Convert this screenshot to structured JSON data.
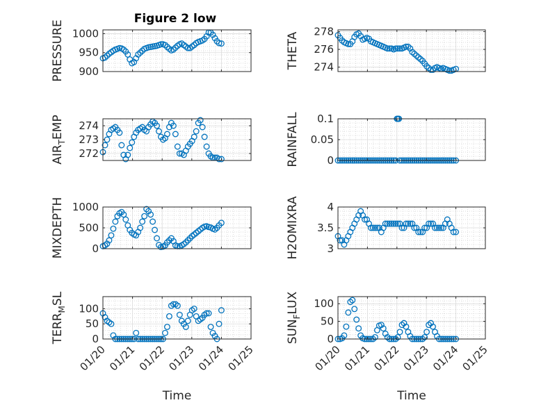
{
  "figure": {
    "title": "Figure 2 low",
    "marker_color": "#0072BD"
  },
  "chart_data": [
    {
      "type": "scatter",
      "ylabel": "PRESSURE",
      "ylabel_sub": "",
      "ylim": [
        900,
        1010
      ],
      "yticks": [
        900,
        950,
        1000
      ],
      "ytick_labels": [
        "900",
        "950",
        "1000"
      ],
      "x": [
        20.0,
        20.07,
        20.14,
        20.21,
        20.28,
        20.35,
        20.42,
        20.49,
        20.56,
        20.63,
        20.7,
        20.77,
        20.84,
        20.91,
        20.98,
        21.05,
        21.12,
        21.19,
        21.26,
        21.33,
        21.4,
        21.47,
        21.54,
        21.61,
        21.68,
        21.75,
        21.82,
        21.89,
        21.96,
        22.03,
        22.1,
        22.17,
        22.24,
        22.31,
        22.38,
        22.45,
        22.52,
        22.59,
        22.66,
        22.73,
        22.8,
        22.87,
        22.94,
        23.01,
        23.08,
        23.15,
        23.22,
        23.29,
        23.36,
        23.43,
        23.5,
        23.57,
        23.64,
        23.71,
        23.78,
        23.85,
        23.92,
        24.0
      ],
      "y": [
        935,
        937,
        942,
        947,
        951,
        955,
        958,
        960,
        962,
        961,
        958,
        953,
        945,
        932,
        922,
        925,
        935,
        945,
        950,
        955,
        960,
        962,
        964,
        965,
        966,
        967,
        968,
        970,
        972,
        972,
        970,
        965,
        960,
        956,
        958,
        963,
        968,
        972,
        974,
        970,
        966,
        962,
        962,
        966,
        970,
        975,
        978,
        980,
        982,
        986,
        993,
        1003,
        1003,
        997,
        988,
        980,
        975,
        974
      ]
    },
    {
      "type": "scatter",
      "ylabel": "THETA",
      "ylabel_sub": "",
      "ylim": [
        273.5,
        278.2
      ],
      "yticks": [
        274,
        276,
        278
      ],
      "ytick_labels": [
        "274",
        "276",
        "278"
      ],
      "x": [
        20.0,
        20.07,
        20.14,
        20.21,
        20.28,
        20.35,
        20.42,
        20.49,
        20.56,
        20.63,
        20.7,
        20.77,
        20.84,
        20.91,
        20.98,
        21.05,
        21.12,
        21.19,
        21.26,
        21.33,
        21.4,
        21.47,
        21.54,
        21.61,
        21.68,
        21.75,
        21.82,
        21.89,
        21.96,
        22.03,
        22.1,
        22.17,
        22.24,
        22.31,
        22.38,
        22.45,
        22.52,
        22.59,
        22.66,
        22.73,
        22.8,
        22.87,
        22.94,
        23.01,
        23.08,
        23.15,
        23.22,
        23.29,
        23.36,
        23.43,
        23.5,
        23.57,
        23.64,
        23.71,
        23.78,
        23.85,
        23.92,
        24.0
      ],
      "y": [
        277.6,
        277.3,
        277.0,
        276.8,
        276.7,
        276.6,
        276.6,
        276.9,
        277.4,
        277.7,
        277.8,
        277.5,
        277.1,
        277.2,
        277.3,
        277.2,
        276.9,
        276.8,
        276.7,
        276.6,
        276.5,
        276.4,
        276.3,
        276.2,
        276.1,
        276.1,
        276.1,
        276.0,
        276.1,
        276.1,
        276.1,
        276.1,
        276.2,
        276.3,
        276.3,
        276.1,
        275.7,
        275.5,
        275.3,
        275.1,
        274.9,
        274.7,
        274.4,
        274.1,
        273.9,
        273.7,
        273.7,
        273.9,
        274.0,
        273.9,
        273.8,
        273.9,
        273.8,
        273.7,
        273.6,
        273.6,
        273.7,
        273.8
      ]
    },
    {
      "type": "scatter",
      "ylabel": "AIR",
      "ylabel_sub": "T",
      "ylabel_rest": "EMP",
      "ylim": [
        271.5,
        274.5
      ],
      "yticks": [
        272,
        273,
        274
      ],
      "ytick_labels": [
        "272",
        "273",
        "274"
      ],
      "x": [
        20.0,
        20.07,
        20.14,
        20.21,
        20.28,
        20.35,
        20.42,
        20.49,
        20.56,
        20.63,
        20.7,
        20.77,
        20.84,
        20.91,
        20.98,
        21.05,
        21.12,
        21.19,
        21.26,
        21.33,
        21.4,
        21.47,
        21.54,
        21.61,
        21.68,
        21.75,
        21.82,
        21.89,
        21.96,
        22.03,
        22.1,
        22.17,
        22.24,
        22.31,
        22.38,
        22.45,
        22.52,
        22.59,
        22.66,
        22.73,
        22.8,
        22.87,
        22.94,
        23.01,
        23.08,
        23.15,
        23.22,
        23.29,
        23.36,
        23.43,
        23.5,
        23.57,
        23.64,
        23.71,
        23.78,
        23.85,
        23.92,
        24.0
      ],
      "y": [
        272.1,
        272.6,
        273.0,
        273.4,
        273.7,
        273.8,
        273.9,
        273.7,
        273.5,
        272.6,
        271.9,
        271.6,
        271.9,
        272.4,
        272.8,
        273.2,
        273.5,
        273.7,
        273.8,
        273.9,
        273.7,
        273.6,
        273.9,
        274.1,
        274.3,
        274.2,
        274.0,
        273.6,
        273.2,
        273.0,
        273.1,
        273.4,
        273.9,
        274.2,
        274.0,
        273.4,
        272.5,
        272.0,
        272.0,
        271.9,
        272.2,
        272.5,
        272.7,
        272.9,
        273.2,
        273.6,
        274.2,
        274.4,
        273.9,
        273.2,
        272.5,
        272.0,
        271.8,
        271.7,
        271.7,
        271.7,
        271.6,
        271.6
      ]
    },
    {
      "type": "scatter",
      "ylabel": "RAINFALL",
      "ylabel_sub": "",
      "ylim": [
        0,
        0.1
      ],
      "yticks": [
        0,
        0.05,
        0.1
      ],
      "ytick_labels": [
        "0",
        "0.05",
        "0.1"
      ],
      "x": [
        20.0,
        20.07,
        20.14,
        20.21,
        20.28,
        20.35,
        20.42,
        20.49,
        20.56,
        20.63,
        20.7,
        20.77,
        20.84,
        20.91,
        20.98,
        21.05,
        21.12,
        21.19,
        21.26,
        21.33,
        21.4,
        21.47,
        21.54,
        21.61,
        21.68,
        21.75,
        21.82,
        21.89,
        21.96,
        22.0,
        22.03,
        22.07,
        22.1,
        22.17,
        22.24,
        22.31,
        22.38,
        22.45,
        22.52,
        22.59,
        22.66,
        22.73,
        22.8,
        22.87,
        22.94,
        23.01,
        23.08,
        23.15,
        23.22,
        23.29,
        23.36,
        23.43,
        23.5,
        23.57,
        23.64,
        23.71,
        23.78,
        23.85,
        23.92,
        24.0
      ],
      "y": [
        0,
        0,
        0,
        0,
        0,
        0,
        0,
        0,
        0,
        0,
        0,
        0,
        0,
        0,
        0,
        0,
        0,
        0,
        0,
        0,
        0,
        0,
        0,
        0,
        0,
        0,
        0,
        0,
        0,
        0.1,
        0.1,
        0.1,
        0,
        0,
        0,
        0,
        0,
        0,
        0,
        0,
        0,
        0,
        0,
        0,
        0,
        0,
        0,
        0,
        0,
        0,
        0,
        0,
        0,
        0,
        0,
        0,
        0,
        0,
        0,
        0
      ]
    },
    {
      "type": "scatter",
      "ylabel": "MIXDEPTH",
      "ylabel_sub": "",
      "ylim": [
        0,
        1000
      ],
      "yticks": [
        0,
        500,
        1000
      ],
      "ytick_labels": [
        "0",
        "500",
        "1000"
      ],
      "x": [
        20.0,
        20.07,
        20.14,
        20.21,
        20.28,
        20.35,
        20.42,
        20.49,
        20.56,
        20.63,
        20.7,
        20.77,
        20.84,
        20.91,
        20.98,
        21.05,
        21.12,
        21.19,
        21.26,
        21.33,
        21.4,
        21.47,
        21.54,
        21.61,
        21.68,
        21.75,
        21.82,
        21.89,
        21.96,
        22.03,
        22.1,
        22.17,
        22.24,
        22.31,
        22.38,
        22.45,
        22.52,
        22.59,
        22.66,
        22.73,
        22.8,
        22.87,
        22.94,
        23.01,
        23.08,
        23.15,
        23.22,
        23.29,
        23.36,
        23.43,
        23.5,
        23.57,
        23.64,
        23.71,
        23.78,
        23.85,
        23.92,
        24.0
      ],
      "y": [
        60,
        80,
        120,
        200,
        320,
        480,
        650,
        780,
        850,
        880,
        820,
        700,
        560,
        450,
        380,
        340,
        320,
        400,
        500,
        650,
        780,
        950,
        900,
        820,
        650,
        450,
        250,
        90,
        40,
        50,
        80,
        150,
        200,
        250,
        180,
        80,
        60,
        60,
        80,
        110,
        150,
        200,
        250,
        300,
        340,
        380,
        420,
        460,
        500,
        530,
        540,
        520,
        510,
        480,
        460,
        500,
        560,
        620
      ]
    },
    {
      "type": "scatter",
      "ylabel": "H2OMIXRA",
      "ylabel_sub": "",
      "ylim": [
        3,
        4
      ],
      "yticks": [
        3,
        3.5,
        4
      ],
      "ytick_labels": [
        "3",
        "3.5",
        "4"
      ],
      "x": [
        20.0,
        20.07,
        20.14,
        20.21,
        20.28,
        20.35,
        20.42,
        20.49,
        20.56,
        20.63,
        20.7,
        20.77,
        20.84,
        20.91,
        20.98,
        21.05,
        21.12,
        21.19,
        21.26,
        21.33,
        21.4,
        21.47,
        21.54,
        21.61,
        21.68,
        21.75,
        21.82,
        21.89,
        21.96,
        22.03,
        22.1,
        22.17,
        22.24,
        22.31,
        22.38,
        22.45,
        22.52,
        22.59,
        22.66,
        22.73,
        22.8,
        22.87,
        22.94,
        23.01,
        23.08,
        23.15,
        23.22,
        23.29,
        23.36,
        23.43,
        23.5,
        23.57,
        23.64,
        23.71,
        23.78,
        23.85,
        23.92,
        24.0
      ],
      "y": [
        3.3,
        3.2,
        3.2,
        3.1,
        3.2,
        3.3,
        3.4,
        3.5,
        3.6,
        3.7,
        3.8,
        3.9,
        3.8,
        3.7,
        3.7,
        3.6,
        3.5,
        3.5,
        3.5,
        3.5,
        3.5,
        3.4,
        3.5,
        3.6,
        3.6,
        3.6,
        3.6,
        3.6,
        3.6,
        3.6,
        3.6,
        3.5,
        3.5,
        3.6,
        3.6,
        3.6,
        3.6,
        3.5,
        3.5,
        3.4,
        3.4,
        3.4,
        3.5,
        3.5,
        3.6,
        3.6,
        3.6,
        3.5,
        3.5,
        3.5,
        3.5,
        3.5,
        3.6,
        3.7,
        3.6,
        3.5,
        3.4,
        3.4
      ]
    },
    {
      "type": "scatter",
      "ylabel": "TERR",
      "ylabel_sub": "M",
      "ylabel_rest": "SL",
      "ylim": [
        0,
        140
      ],
      "yticks": [
        0,
        50,
        100
      ],
      "ytick_labels": [
        "0",
        "50",
        "100"
      ],
      "x": [
        20.0,
        20.07,
        20.14,
        20.21,
        20.28,
        20.35,
        20.42,
        20.49,
        20.56,
        20.63,
        20.7,
        20.77,
        20.84,
        20.91,
        20.98,
        21.05,
        21.12,
        21.19,
        21.26,
        21.33,
        21.4,
        21.47,
        21.54,
        21.61,
        21.68,
        21.75,
        21.82,
        21.89,
        21.96,
        22.03,
        22.1,
        22.17,
        22.24,
        22.31,
        22.38,
        22.45,
        22.52,
        22.59,
        22.66,
        22.73,
        22.8,
        22.87,
        22.94,
        23.01,
        23.08,
        23.15,
        23.22,
        23.29,
        23.36,
        23.43,
        23.5,
        23.57,
        23.64,
        23.71,
        23.78,
        23.85,
        23.92,
        24.0
      ],
      "y": [
        85,
        72,
        60,
        55,
        50,
        12,
        0,
        0,
        0,
        0,
        0,
        0,
        0,
        0,
        0,
        0,
        20,
        0,
        0,
        0,
        0,
        0,
        0,
        0,
        0,
        0,
        0,
        0,
        0,
        0,
        20,
        40,
        75,
        110,
        115,
        115,
        110,
        80,
        60,
        50,
        40,
        60,
        80,
        95,
        100,
        75,
        60,
        65,
        70,
        80,
        85,
        85,
        40,
        20,
        10,
        0,
        50,
        95
      ]
    },
    {
      "type": "scatter",
      "ylabel": "SUN",
      "ylabel_sub": "F",
      "ylabel_rest": "LUX",
      "ylim": [
        0,
        120
      ],
      "yticks": [
        0,
        50,
        100
      ],
      "ytick_labels": [
        "0",
        "50",
        "100"
      ],
      "x": [
        20.0,
        20.07,
        20.14,
        20.21,
        20.28,
        20.35,
        20.42,
        20.49,
        20.56,
        20.63,
        20.7,
        20.77,
        20.84,
        20.91,
        20.98,
        21.05,
        21.12,
        21.19,
        21.26,
        21.33,
        21.4,
        21.47,
        21.54,
        21.61,
        21.68,
        21.75,
        21.82,
        21.89,
        21.96,
        22.03,
        22.1,
        22.17,
        22.24,
        22.31,
        22.38,
        22.45,
        22.52,
        22.59,
        22.66,
        22.73,
        22.8,
        22.87,
        22.94,
        23.01,
        23.08,
        23.15,
        23.22,
        23.29,
        23.36,
        23.43,
        23.5,
        23.57,
        23.64,
        23.71,
        23.78,
        23.85,
        23.92,
        24.0
      ],
      "y": [
        0,
        0,
        2,
        10,
        35,
        75,
        105,
        110,
        85,
        55,
        30,
        10,
        2,
        0,
        0,
        0,
        0,
        0,
        5,
        25,
        38,
        40,
        30,
        15,
        5,
        0,
        0,
        0,
        0,
        5,
        20,
        40,
        45,
        35,
        20,
        8,
        0,
        0,
        0,
        0,
        0,
        0,
        5,
        20,
        40,
        45,
        35,
        20,
        8,
        0,
        0,
        0,
        0,
        0,
        0,
        0,
        0,
        0
      ]
    }
  ],
  "shared_x": {
    "label": "Time",
    "xlim": [
      20,
      25
    ],
    "ticks": [
      20,
      21,
      22,
      23,
      24,
      25
    ],
    "tick_labels": [
      "01/20",
      "01/21",
      "01/22",
      "01/23",
      "01/24",
      "01/25"
    ]
  }
}
